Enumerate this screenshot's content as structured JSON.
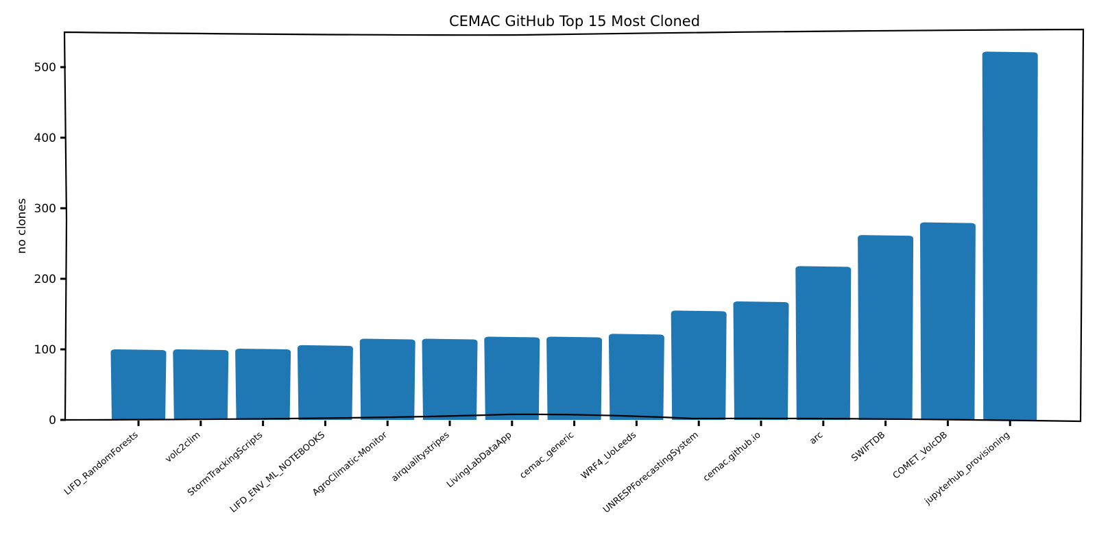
{
  "chart_data": {
    "type": "bar",
    "title": "CEMAC GitHub Top 15 Most Cloned",
    "xlabel": "",
    "ylabel": "no clones",
    "ylim": [
      0,
      550
    ],
    "yticks": [
      0,
      100,
      200,
      300,
      400,
      500
    ],
    "grid": false,
    "legend": "none",
    "bar_color": "#1f77b4",
    "categories": [
      "LIFD_RandomForests",
      "volc2clim",
      "StormTrackingScripts",
      "LIFD_ENV_ML_NOTEBOOKS",
      "AgroClimatic-Monitor",
      "airqualitystripes",
      "LivingLabDataApp",
      "cemac_generic",
      "WRF4_UoLeeds",
      "UNRESPForecastingSystem",
      "cemac.github.io",
      "arc",
      "SWIFTDB",
      "COMET_VolcDB",
      "jupyterhub_provisioning"
    ],
    "values": [
      100,
      100,
      101,
      106,
      115,
      115,
      118,
      118,
      122,
      155,
      168,
      218,
      262,
      280,
      522
    ]
  }
}
